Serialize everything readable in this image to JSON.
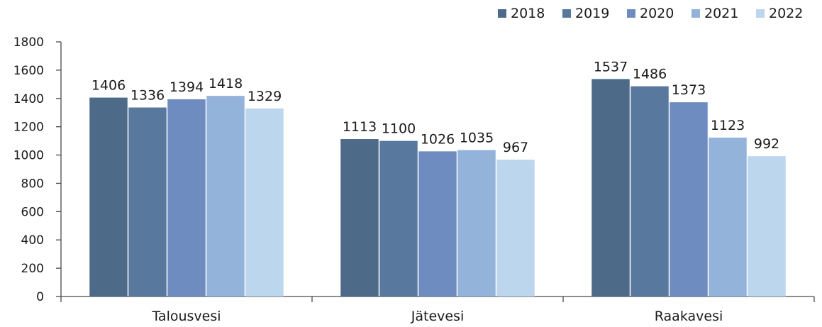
{
  "chart_data": {
    "type": "bar",
    "title": "",
    "xlabel": "",
    "ylabel": "",
    "ylim": [
      0,
      1800
    ],
    "yticks": [
      0,
      200,
      400,
      600,
      800,
      1000,
      1200,
      1400,
      1600,
      1800
    ],
    "grid": false,
    "legend_position": "top-right",
    "categories": [
      "Talousvesi",
      "Jätevesi",
      "Raakavesi"
    ],
    "series": [
      {
        "name": "2018",
        "color": "#4d6b88",
        "values": [
          1406,
          1113,
          1537
        ]
      },
      {
        "name": "2019",
        "color": "#59789e",
        "values": [
          1336,
          1100,
          1486
        ]
      },
      {
        "name": "2020",
        "color": "#6f8cc0",
        "values": [
          1394,
          1026,
          1373
        ]
      },
      {
        "name": "2021",
        "color": "#93b3da",
        "values": [
          1418,
          1035,
          1123
        ]
      },
      {
        "name": "2022",
        "color": "#bcd6ee",
        "values": [
          1329,
          967,
          992
        ]
      }
    ]
  }
}
